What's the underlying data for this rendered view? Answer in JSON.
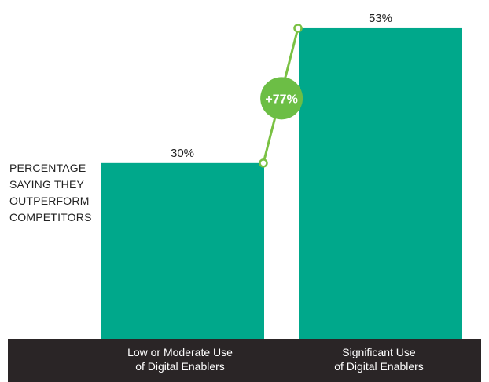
{
  "chart_data": {
    "type": "bar",
    "title": "",
    "ylabel_lines": [
      "PERCENTAGE",
      "SAYING THEY",
      "OUTPERFORM",
      "COMPETITORS"
    ],
    "xlabel": "",
    "categories": [
      [
        "Low or Moderate Use",
        "of Digital Enablers"
      ],
      [
        "Significant Use",
        "of Digital Enablers"
      ]
    ],
    "values": [
      30,
      53
    ],
    "value_labels": [
      "30%",
      "53%"
    ],
    "ylim": [
      0,
      55
    ],
    "grid": false,
    "annotation": {
      "text": "+77%",
      "from_index": 0,
      "to_index": 1
    },
    "colors": {
      "bar": "#00a88b",
      "connector": "#7ac143",
      "badge": "#6cbe45",
      "badge_text": "#ffffff",
      "axis_band": "#2a2526",
      "axis_text": "#ffffff",
      "text": "#222222"
    }
  }
}
